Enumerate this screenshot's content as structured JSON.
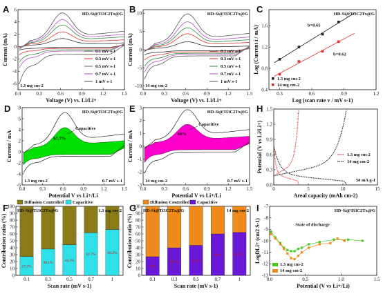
{
  "sample_label": "HD-Si@Ti3C2Tx@G",
  "chart_data": [
    {
      "panel": "A",
      "type": "line",
      "xlabel": "Voltage (V) vs. Li/Li+",
      "ylabel": "Current (mA)",
      "xlim": [
        0,
        1.5
      ],
      "ylim": [
        -7,
        6
      ],
      "xticks": [
        "0.0",
        "0.3",
        "0.6",
        "0.9",
        "1.2",
        "1.5"
      ],
      "yticks": [
        "-6",
        "-4",
        "-2",
        "0",
        "2",
        "4",
        "6"
      ],
      "loading": "1.3 mg cm-2",
      "series": [
        {
          "name": "0.1 mV s-1",
          "color": "#333333",
          "ipa": 1.2,
          "ipc": -0.6
        },
        {
          "name": "0.3 mV s-1",
          "color": "#e03030",
          "ipa": 2.2,
          "ipc": -1.4
        },
        {
          "name": "0.5 mV s-1",
          "color": "#2f8a3a",
          "ipa": 3.2,
          "ipc": -2.6
        },
        {
          "name": "0.7 mV s-1",
          "color": "#b050c0",
          "ipa": 4.0,
          "ipc": -3.6
        },
        {
          "name": "1 mV s-1",
          "color": "#555555",
          "ipa": 5.0,
          "ipc": -6.3
        }
      ]
    },
    {
      "panel": "B",
      "type": "line",
      "xlabel": "Voltage (V) vs. Li/Li+",
      "ylabel": "Current (mA)",
      "xlim": [
        0,
        1.5
      ],
      "ylim": [
        -11,
        11
      ],
      "xticks": [
        "0.0",
        "0.3",
        "0.6",
        "0.9",
        "1.2",
        "1.5"
      ],
      "yticks": [
        "-10",
        "-5",
        "0",
        "5",
        "10"
      ],
      "loading": "14 mg cm-2",
      "series": [
        {
          "name": "0.1 mV s-1",
          "color": "#333333",
          "ipa": 2.0,
          "ipc": -1.5
        },
        {
          "name": "0.3 mV s-1",
          "color": "#e03030",
          "ipa": 4.0,
          "ipc": -3.0
        },
        {
          "name": "0.5 mV s-1",
          "color": "#2f8a3a",
          "ipa": 5.5,
          "ipc": -4.8
        },
        {
          "name": "0.7 mV s-1",
          "color": "#b050c0",
          "ipa": 7.0,
          "ipc": -6.5
        },
        {
          "name": "1 mV s-1",
          "color": "#555555",
          "ipa": 9.0,
          "ipc": -8.5
        }
      ]
    },
    {
      "panel": "C",
      "type": "scatter",
      "xlabel": "Log (scan rate v / mV s-1)",
      "ylabel": "Log (Current i / mA)",
      "xlim": [
        0.2,
        1.2
      ],
      "ylim": [
        0.4,
        1.9
      ],
      "xticks": [
        "0.3",
        "0.6",
        "0.9",
        "1.2"
      ],
      "yticks": [
        "0.4",
        "0.8",
        "1.2",
        "1.6"
      ],
      "annotations": [
        "b=0.65",
        "b=0.62"
      ],
      "series": [
        {
          "name": "1.3 mg cm-2",
          "color": "#222222",
          "x": [
            0.3,
            0.48,
            0.7,
            0.85
          ],
          "y": [
            0.97,
            1.2,
            1.44,
            1.67
          ]
        },
        {
          "name": "14 mg cm-2",
          "color": "#e03030",
          "x": [
            0.3,
            0.48,
            0.7,
            0.85
          ],
          "y": [
            0.69,
            0.93,
            1.12,
            1.3
          ]
        }
      ]
    },
    {
      "panel": "D",
      "type": "area",
      "xlabel": "Potential V vs Li+/Li",
      "ylabel": "Current / mA",
      "xlim": [
        0,
        1.5
      ],
      "ylim": [
        -6,
        8
      ],
      "xticks": [
        "0.0",
        "0.3",
        "0.6",
        "0.9",
        "1.2",
        "1.5"
      ],
      "yticks": [
        "-6",
        "-4",
        "-2",
        "0",
        "2",
        "4",
        "6",
        "8"
      ],
      "fill_label": "Capacitive",
      "percent": "61.7%",
      "scan_rate": "0.7 mV s-1",
      "loading": "1.3 mg cm-2",
      "color": "#00e000",
      "ipa": 6.5,
      "ipc": -4.0
    },
    {
      "panel": "E",
      "type": "area",
      "xlabel": "Potential V vs Li+/Li",
      "ylabel": "Current / mA",
      "xlim": [
        0,
        1.5
      ],
      "ylim": [
        -3,
        3
      ],
      "xticks": [
        "0.0",
        "0.3",
        "0.6",
        "0.9",
        "1.2",
        "1.5"
      ],
      "yticks": [
        "-3",
        "-2",
        "-1",
        "0",
        "1",
        "2",
        "3"
      ],
      "fill_label": "Capacitive",
      "percent": "60%",
      "scan_rate": "0.7 mV s-1",
      "loading": "14 mg cm-2",
      "color": "#ff00cc",
      "ipa": 2.6,
      "ipc": -2.2
    },
    {
      "panel": "H",
      "type": "line",
      "xlabel": "Areal capacity (mAh cm-2)",
      "ylabel": "Potential (V vs Li/Li+)",
      "xlim": [
        0,
        15
      ],
      "ylim": [
        0,
        1.5
      ],
      "xticks": [
        "0",
        "5",
        "10",
        "15"
      ],
      "yticks": [
        "0.0",
        "0.3",
        "0.6",
        "0.9",
        "1.2",
        "1.5"
      ],
      "current_density": "50 mA g-1",
      "series": [
        {
          "name": "1.3 mg cm-2",
          "color": "#e03030",
          "capacity": 3.6
        },
        {
          "name": "14 mg cm-2",
          "color": "#222222",
          "capacity": 10.5
        }
      ]
    },
    {
      "panel": "F",
      "type": "bar",
      "xlabel": "Scan rate (mV s-1)",
      "ylabel": "Contribution ratio (%)",
      "ylim": [
        0,
        100
      ],
      "categories": [
        "0.1",
        "0.3",
        "0.5",
        "0.7",
        "1"
      ],
      "yticks": [
        "0",
        "10",
        "20",
        "30",
        "40",
        "50",
        "60",
        "70",
        "80",
        "90",
        "100"
      ],
      "loading": "1.3 mg cm-2",
      "series": [
        {
          "name": "Diffusion Controlled",
          "color": "#8a7a18",
          "values": [
            72.8,
            61.9,
            55.7,
            38.3,
            33.8
          ]
        },
        {
          "name": "Capacitive",
          "color": "#2ee0e8",
          "values": [
            27.2,
            38.1,
            44.3,
            61.7,
            66.2
          ]
        }
      ],
      "value_labels": [
        "27.2%",
        "38.1%",
        "44.3%",
        "61.7%",
        "66.2%"
      ]
    },
    {
      "panel": "G",
      "type": "bar",
      "xlabel": "Scan rate (mV s-1)",
      "ylabel": "Contribution ratio (%)",
      "ylim": [
        0,
        100
      ],
      "categories": [
        "0.1",
        "0.3",
        "0.5",
        "0.7",
        "1"
      ],
      "yticks": [
        "0",
        "10",
        "20",
        "30",
        "40",
        "50",
        "60",
        "70",
        "80",
        "90",
        "100"
      ],
      "loading": "14 mg cm-2",
      "series": [
        {
          "name": "Diffusion Controlled",
          "color": "#f08a1c",
          "values": [
            73,
            60.1,
            56.5,
            40,
            37.8
          ]
        },
        {
          "name": "Capacitive",
          "color": "#6a18d8",
          "values": [
            27,
            39.9,
            43.5,
            60,
            62.2
          ]
        }
      ],
      "value_labels": [
        "27%",
        "39.9%",
        "43.5%",
        "60%",
        "62.2%"
      ]
    },
    {
      "panel": "I",
      "type": "scatter",
      "xlabel": "Potential (V vs Li+/Li)",
      "ylabel": "LogDLi+ (cm2 S-1)",
      "xlim": [
        0,
        1.5
      ],
      "ylim": [
        -13,
        -7
      ],
      "xticks": [
        "0.0",
        "0.5",
        "1.0",
        "1.5"
      ],
      "yticks": [
        "-13",
        "-12",
        "-11",
        "-10",
        "-9",
        "-8",
        "-7"
      ],
      "annotation": "State of discharge",
      "series": [
        {
          "name": "1.3 mg cm-2",
          "color": "#44cc22",
          "x": [
            0.02,
            0.08,
            0.15,
            0.2,
            0.25,
            0.3,
            0.35,
            0.4,
            0.45,
            0.55,
            0.7,
            0.9,
            1.1,
            1.3
          ],
          "y": [
            -9.2,
            -9.7,
            -10.2,
            -10.6,
            -10.8,
            -10.9,
            -10.9,
            -10.7,
            -10.6,
            -10.3,
            -10.1,
            -9.9,
            -9.9,
            -10.0
          ]
        },
        {
          "name": "14 mg cm-2",
          "color": "#f08a1c",
          "x": [
            0.02,
            0.08,
            0.15,
            0.2,
            0.25,
            0.3,
            0.35,
            0.4,
            0.45,
            0.55,
            0.7,
            0.85,
            0.95,
            1.05
          ],
          "y": [
            -9.4,
            -9.8,
            -10.3,
            -10.7,
            -11.1,
            -11.5,
            -11.6,
            -11.3,
            -11.0,
            -10.6,
            -10.3,
            -10.2,
            -9.8,
            -10.0
          ]
        }
      ]
    }
  ]
}
